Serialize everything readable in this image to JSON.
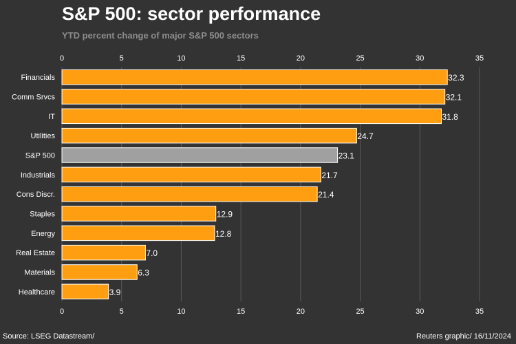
{
  "chart_data": {
    "type": "bar",
    "orientation": "horizontal",
    "title": "S&P 500: sector performance",
    "subtitle": "YTD percent change of major S&P 500 sectors",
    "categories": [
      "Financials",
      "Comm Srvcs",
      "IT",
      "Utilities",
      "S&P 500",
      "Industrials",
      "Cons Discr.",
      "Staples",
      "Energy",
      "Real Estate",
      "Materials",
      "Healthcare"
    ],
    "values": [
      32.3,
      32.1,
      31.8,
      24.7,
      23.1,
      21.7,
      21.4,
      12.9,
      12.8,
      7.0,
      6.3,
      3.9
    ],
    "value_labels": [
      "32.3",
      "32.1",
      "31.8",
      "24.7",
      "23.1",
      "21.7",
      "21.4",
      "12.9",
      "12.8",
      "7.0",
      "6.3",
      "3.9"
    ],
    "highlight_category": "S&P 500",
    "xlim": [
      0,
      35
    ],
    "xticks": [
      0,
      5,
      10,
      15,
      20,
      25,
      30,
      35
    ],
    "xlabel": "",
    "ylabel": "",
    "grid": true,
    "colors": {
      "bar": "#ff9e10",
      "highlight": "#a0a0a0",
      "background": "#333333",
      "grid": "#5a5a5a",
      "text": "#ffffff",
      "subtitle": "#8c8c8c"
    }
  },
  "footer": {
    "source": "Source: LSEG Datastream/",
    "credit": "Reuters graphic/ 16/11/2024"
  }
}
